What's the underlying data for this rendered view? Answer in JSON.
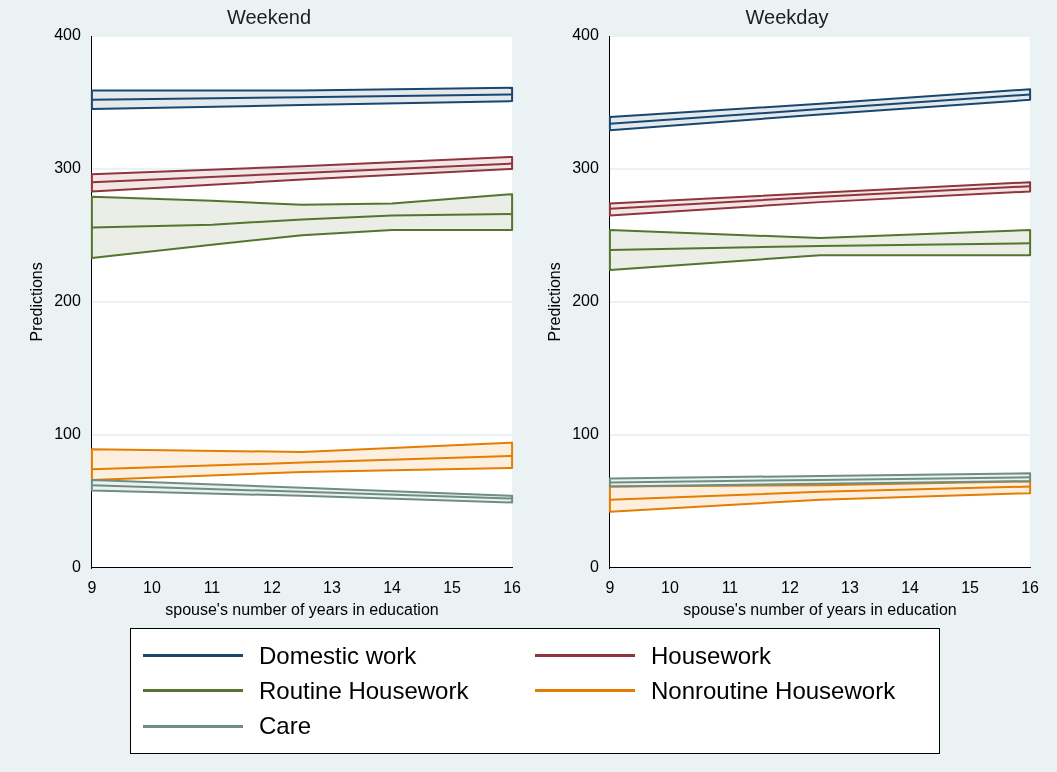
{
  "chart_data": [
    {
      "type": "line",
      "title": "Weekend",
      "xlabel": "spouse's number of years in education",
      "ylabel": "Predictions",
      "xlim": [
        9,
        16
      ],
      "xticks": [
        9,
        10,
        11,
        12,
        13,
        14,
        15,
        16
      ],
      "ylim": [
        0,
        400
      ],
      "yticks": [
        0,
        100,
        200,
        300,
        400
      ],
      "grid": "y",
      "legend": "bottom",
      "marker": "none",
      "series": [
        {
          "name": "Domestic work",
          "color": "#1a476f",
          "x": [
            9,
            12.5,
            16
          ],
          "values": [
            352,
            354,
            356
          ],
          "lower": [
            345,
            348,
            351
          ],
          "upper": [
            359,
            359,
            361
          ]
        },
        {
          "name": "Housework",
          "color": "#90353b",
          "x": [
            9,
            12.5,
            16
          ],
          "values": [
            290,
            297,
            304
          ],
          "lower": [
            283,
            292,
            300
          ],
          "upper": [
            296,
            302,
            309
          ]
        },
        {
          "name": "Routine Housework",
          "color": "#55752f",
          "x": [
            9,
            11,
            12.5,
            14,
            16
          ],
          "values": [
            256,
            258,
            262,
            265,
            266
          ],
          "lower": [
            233,
            243,
            250,
            254,
            254
          ],
          "upper": [
            279,
            276,
            273,
            274,
            281
          ]
        },
        {
          "name": "Nonroutine Housework",
          "color": "#e37e00",
          "x": [
            9,
            12.5,
            16
          ],
          "values": [
            74,
            79,
            84
          ],
          "lower": [
            66,
            72,
            75
          ],
          "upper": [
            89,
            87,
            94
          ]
        },
        {
          "name": "Care",
          "color": "#6e8e84",
          "x": [
            9,
            12.5,
            16
          ],
          "values": [
            62,
            57,
            52
          ],
          "lower": [
            58,
            54,
            49
          ],
          "upper": [
            66,
            60,
            54
          ]
        }
      ]
    },
    {
      "type": "line",
      "title": "Weekday",
      "xlabel": "spouse's number of years in education",
      "ylabel": "Predictions",
      "xlim": [
        9,
        16
      ],
      "xticks": [
        9,
        10,
        11,
        12,
        13,
        14,
        15,
        16
      ],
      "ylim": [
        0,
        400
      ],
      "yticks": [
        0,
        100,
        200,
        300,
        400
      ],
      "grid": "y",
      "marker": "none",
      "series": [
        {
          "color": "#1a476f",
          "x": [
            9,
            12.5,
            16
          ],
          "values": [
            334,
            345,
            356
          ],
          "lower": [
            329,
            341,
            352
          ],
          "upper": [
            339,
            349,
            360
          ]
        },
        {
          "color": "#90353b",
          "x": [
            9,
            12.5,
            16
          ],
          "values": [
            270,
            279,
            287
          ],
          "lower": [
            265,
            275,
            283
          ],
          "upper": [
            274,
            282,
            290
          ]
        },
        {
          "color": "#55752f",
          "x": [
            9,
            12.5,
            16
          ],
          "values": [
            239,
            242,
            244
          ],
          "lower": [
            224,
            235,
            235
          ],
          "upper": [
            254,
            248,
            254
          ]
        },
        {
          "color": "#e37e00",
          "x": [
            9,
            12.5,
            16
          ],
          "values": [
            51,
            57,
            61
          ],
          "lower": [
            42,
            51,
            56
          ],
          "upper": [
            61,
            62,
            65
          ]
        },
        {
          "color": "#6e8e84",
          "x": [
            9,
            12.5,
            16
          ],
          "values": [
            64,
            66,
            68
          ],
          "lower": [
            61,
            63,
            65
          ],
          "upper": [
            67,
            69,
            71
          ]
        }
      ]
    }
  ]
}
